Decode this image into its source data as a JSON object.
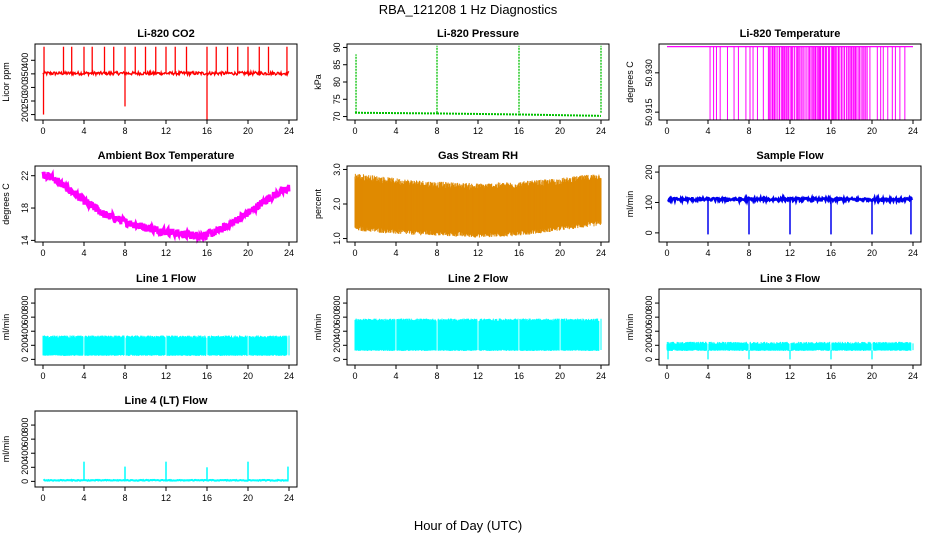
{
  "title": "RBA_121208  1 Hz Diagnostics",
  "xlabel": "Hour of Day (UTC)",
  "chart_data": [
    {
      "id": "co2",
      "type": "line",
      "title": "Li-820 CO2",
      "ylabel": "Licor ppm",
      "color": "#ff0000",
      "style": "spiky-line",
      "x_ticks": [
        "0",
        "4",
        "8",
        "12",
        "16",
        "20",
        "24"
      ],
      "xlim": [
        0,
        24
      ],
      "y_ticks": [
        "200",
        "250",
        "300",
        "350",
        "400"
      ],
      "ylim": [
        180,
        460
      ],
      "baseline": 352,
      "noise": 6,
      "spikes_up": [
        0.1,
        2.0,
        2.8,
        4.0,
        4.8,
        6.0,
        6.9,
        8.0,
        9.0,
        10.0,
        11.0,
        12.0,
        12.9,
        14.0,
        16.0,
        16.9,
        18.0,
        19.0,
        20.0,
        21.1,
        22.0,
        23.8
      ],
      "spike_up_value": 450,
      "spikes_down": [
        {
          "x": 0.05,
          "y": 200
        },
        {
          "x": 8.0,
          "y": 230
        },
        {
          "x": 16.0,
          "y": 180
        }
      ]
    },
    {
      "id": "pressure",
      "type": "line",
      "title": "Li-820 Pressure",
      "ylabel": "kPa",
      "color": "#00c000",
      "style": "step-spikes",
      "x_ticks": [
        "0",
        "4",
        "8",
        "12",
        "16",
        "20",
        "24"
      ],
      "xlim": [
        0,
        24
      ],
      "y_ticks": [
        "70",
        "75",
        "80",
        "85",
        "90"
      ],
      "ylim": [
        69,
        91
      ],
      "segments": [
        {
          "x0": 0,
          "x1": 8,
          "y0": 71.1,
          "y1": 70.9
        },
        {
          "x0": 8,
          "x1": 16,
          "y0": 70.9,
          "y1": 70.6
        },
        {
          "x0": 16,
          "x1": 24,
          "y0": 70.6,
          "y1": 70.2
        }
      ],
      "spikes": [
        {
          "x": 0.1,
          "y": 88
        },
        {
          "x": 8.0,
          "y": 90.5
        },
        {
          "x": 16.0,
          "y": 90.5
        },
        {
          "x": 24.0,
          "y": 90.5
        }
      ]
    },
    {
      "id": "licor-temp",
      "type": "line",
      "title": "Li-820 Temperature",
      "ylabel": "degrees C",
      "color": "#ff00ff",
      "style": "toggle",
      "x_ticks": [
        "0",
        "4",
        "8",
        "12",
        "16",
        "20",
        "24"
      ],
      "xlim": [
        0,
        24
      ],
      "y_ticks": [
        "50.915",
        "50.930"
      ],
      "ylim": [
        50.912,
        50.941
      ],
      "high": 50.94,
      "low": 50.912,
      "start": 4.2,
      "end": 23.5,
      "dense_start": 9.5,
      "dense_end": 19.5
    },
    {
      "id": "box-temp",
      "type": "line",
      "title": "Ambient Box Temperature",
      "ylabel": "degrees C",
      "color": "#ff00ff",
      "style": "band",
      "x_ticks": [
        "0",
        "4",
        "8",
        "12",
        "16",
        "20",
        "24"
      ],
      "xlim": [
        0,
        24
      ],
      "y_ticks": [
        "14",
        "18",
        "22"
      ],
      "ylim": [
        13.8,
        23.2
      ],
      "x": [
        0,
        1,
        2,
        4,
        6,
        8,
        10,
        12,
        14,
        15,
        16,
        17,
        18,
        20,
        22,
        24
      ],
      "y": [
        22.2,
        21.7,
        20.8,
        18.9,
        17.2,
        16.3,
        15.6,
        15.1,
        14.7,
        14.6,
        14.7,
        15.1,
        15.8,
        17.4,
        19.2,
        20.5
      ],
      "band_width": 1.0
    },
    {
      "id": "rh",
      "type": "scatter",
      "title": "Gas Stream RH",
      "ylabel": "percent",
      "color": "#e08a00",
      "style": "noise-band",
      "x_ticks": [
        "0",
        "4",
        "8",
        "12",
        "16",
        "20",
        "24"
      ],
      "xlim": [
        0,
        24
      ],
      "y_ticks": [
        "1.0",
        "2.0",
        "3.0"
      ],
      "ylim": [
        0.9,
        3.1
      ],
      "upper": [
        [
          0,
          2.8
        ],
        [
          4,
          2.65
        ],
        [
          8,
          2.55
        ],
        [
          12,
          2.5
        ],
        [
          16,
          2.55
        ],
        [
          20,
          2.65
        ],
        [
          24,
          2.8
        ]
      ],
      "lower": [
        [
          0,
          1.3
        ],
        [
          4,
          1.2
        ],
        [
          8,
          1.15
        ],
        [
          12,
          1.1
        ],
        [
          16,
          1.15
        ],
        [
          20,
          1.3
        ],
        [
          24,
          1.45
        ]
      ]
    },
    {
      "id": "sample-flow",
      "type": "line",
      "title": "Sample Flow",
      "ylabel": "ml/min",
      "color": "#0000ee",
      "style": "flow-dips",
      "x_ticks": [
        "0",
        "4",
        "8",
        "12",
        "16",
        "20",
        "24"
      ],
      "xlim": [
        0,
        24
      ],
      "y_ticks": [
        "0",
        "100",
        "200"
      ],
      "ylim": [
        -30,
        220
      ],
      "baseline": 110,
      "noise": 10,
      "dip_value": -5,
      "dips": [
        4,
        8,
        12,
        16,
        20,
        23.8
      ]
    },
    {
      "id": "line1",
      "type": "line",
      "title": "Line 1 Flow",
      "ylabel": "ml/min",
      "color": "#00ffff",
      "style": "flow-band",
      "x_ticks": [
        "0",
        "4",
        "8",
        "12",
        "16",
        "20",
        "24"
      ],
      "xlim": [
        0,
        24
      ],
      "y_ticks": [
        "0",
        "200",
        "400",
        "600",
        "800"
      ],
      "ylim": [
        -80,
        1000
      ],
      "band": [
        60,
        320
      ],
      "gaps": [
        4,
        8,
        12,
        16,
        20,
        23.9
      ]
    },
    {
      "id": "line2",
      "type": "line",
      "title": "Line 2 Flow",
      "ylabel": "ml/min",
      "color": "#00ffff",
      "style": "flow-band",
      "x_ticks": [
        "0",
        "4",
        "8",
        "12",
        "16",
        "20",
        "24"
      ],
      "xlim": [
        0,
        24
      ],
      "y_ticks": [
        "0",
        "200",
        "400",
        "600",
        "800"
      ],
      "ylim": [
        -80,
        1000
      ],
      "band": [
        130,
        560
      ],
      "gaps": [
        4,
        8,
        12,
        16,
        20,
        23.9
      ]
    },
    {
      "id": "line3",
      "type": "line",
      "title": "Line 3 Flow",
      "ylabel": "ml/min",
      "color": "#00ffff",
      "style": "flow-band",
      "x_ticks": [
        "0",
        "4",
        "8",
        "12",
        "16",
        "20",
        "24"
      ],
      "xlim": [
        0,
        24
      ],
      "y_ticks": [
        "0",
        "200",
        "400",
        "600",
        "800"
      ],
      "ylim": [
        -80,
        1000
      ],
      "band": [
        130,
        230
      ],
      "gaps": [
        4,
        8,
        12,
        16,
        20,
        23.9
      ],
      "dips": [
        0.1,
        4,
        8,
        12,
        16,
        20
      ]
    },
    {
      "id": "line4",
      "type": "line",
      "title": "Line 4 (LT) Flow",
      "ylabel": "ml/min",
      "color": "#00ffff",
      "style": "flow-spikes",
      "x_ticks": [
        "0",
        "4",
        "8",
        "12",
        "16",
        "20",
        "24"
      ],
      "xlim": [
        0,
        24
      ],
      "y_ticks": [
        "0",
        "200",
        "400",
        "600",
        "800"
      ],
      "ylim": [
        -80,
        1000
      ],
      "baseline": 15,
      "spikes": [
        {
          "x": 4,
          "y": 280
        },
        {
          "x": 8,
          "y": 210
        },
        {
          "x": 12,
          "y": 280
        },
        {
          "x": 16,
          "y": 200
        },
        {
          "x": 20,
          "y": 280
        },
        {
          "x": 23.9,
          "y": 210
        }
      ]
    }
  ]
}
